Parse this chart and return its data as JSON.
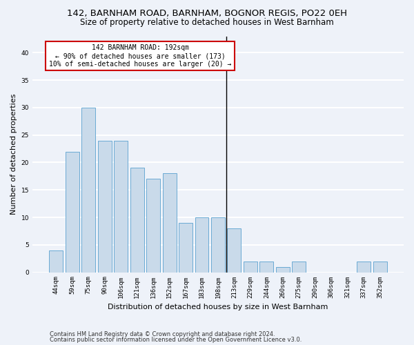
{
  "title1": "142, BARNHAM ROAD, BARNHAM, BOGNOR REGIS, PO22 0EH",
  "title2": "Size of property relative to detached houses in West Barnham",
  "xlabel": "Distribution of detached houses by size in West Barnham",
  "ylabel": "Number of detached properties",
  "categories": [
    "44sqm",
    "59sqm",
    "75sqm",
    "90sqm",
    "106sqm",
    "121sqm",
    "136sqm",
    "152sqm",
    "167sqm",
    "183sqm",
    "198sqm",
    "213sqm",
    "229sqm",
    "244sqm",
    "260sqm",
    "275sqm",
    "290sqm",
    "306sqm",
    "321sqm",
    "337sqm",
    "352sqm"
  ],
  "values": [
    4,
    22,
    30,
    24,
    24,
    19,
    17,
    18,
    9,
    10,
    10,
    8,
    2,
    2,
    1,
    2,
    0,
    0,
    0,
    2,
    2
  ],
  "bar_color": "#c9daea",
  "bar_edge_color": "#6aaad4",
  "annotation_text": "142 BARNHAM ROAD: 192sqm\n← 90% of detached houses are smaller (173)\n10% of semi-detached houses are larger (20) →",
  "annotation_box_color": "white",
  "annotation_box_edge_color": "#cc0000",
  "vertical_line_x": 10.5,
  "ylim": [
    0,
    43
  ],
  "yticks": [
    0,
    5,
    10,
    15,
    20,
    25,
    30,
    35,
    40
  ],
  "footer1": "Contains HM Land Registry data © Crown copyright and database right 2024.",
  "footer2": "Contains public sector information licensed under the Open Government Licence v3.0.",
  "bg_color": "#eef2f9",
  "grid_color": "#ffffff",
  "title1_fontsize": 9.5,
  "title2_fontsize": 8.5,
  "xlabel_fontsize": 8,
  "ylabel_fontsize": 8,
  "tick_fontsize": 6.5,
  "annotation_fontsize": 7,
  "footer_fontsize": 6
}
